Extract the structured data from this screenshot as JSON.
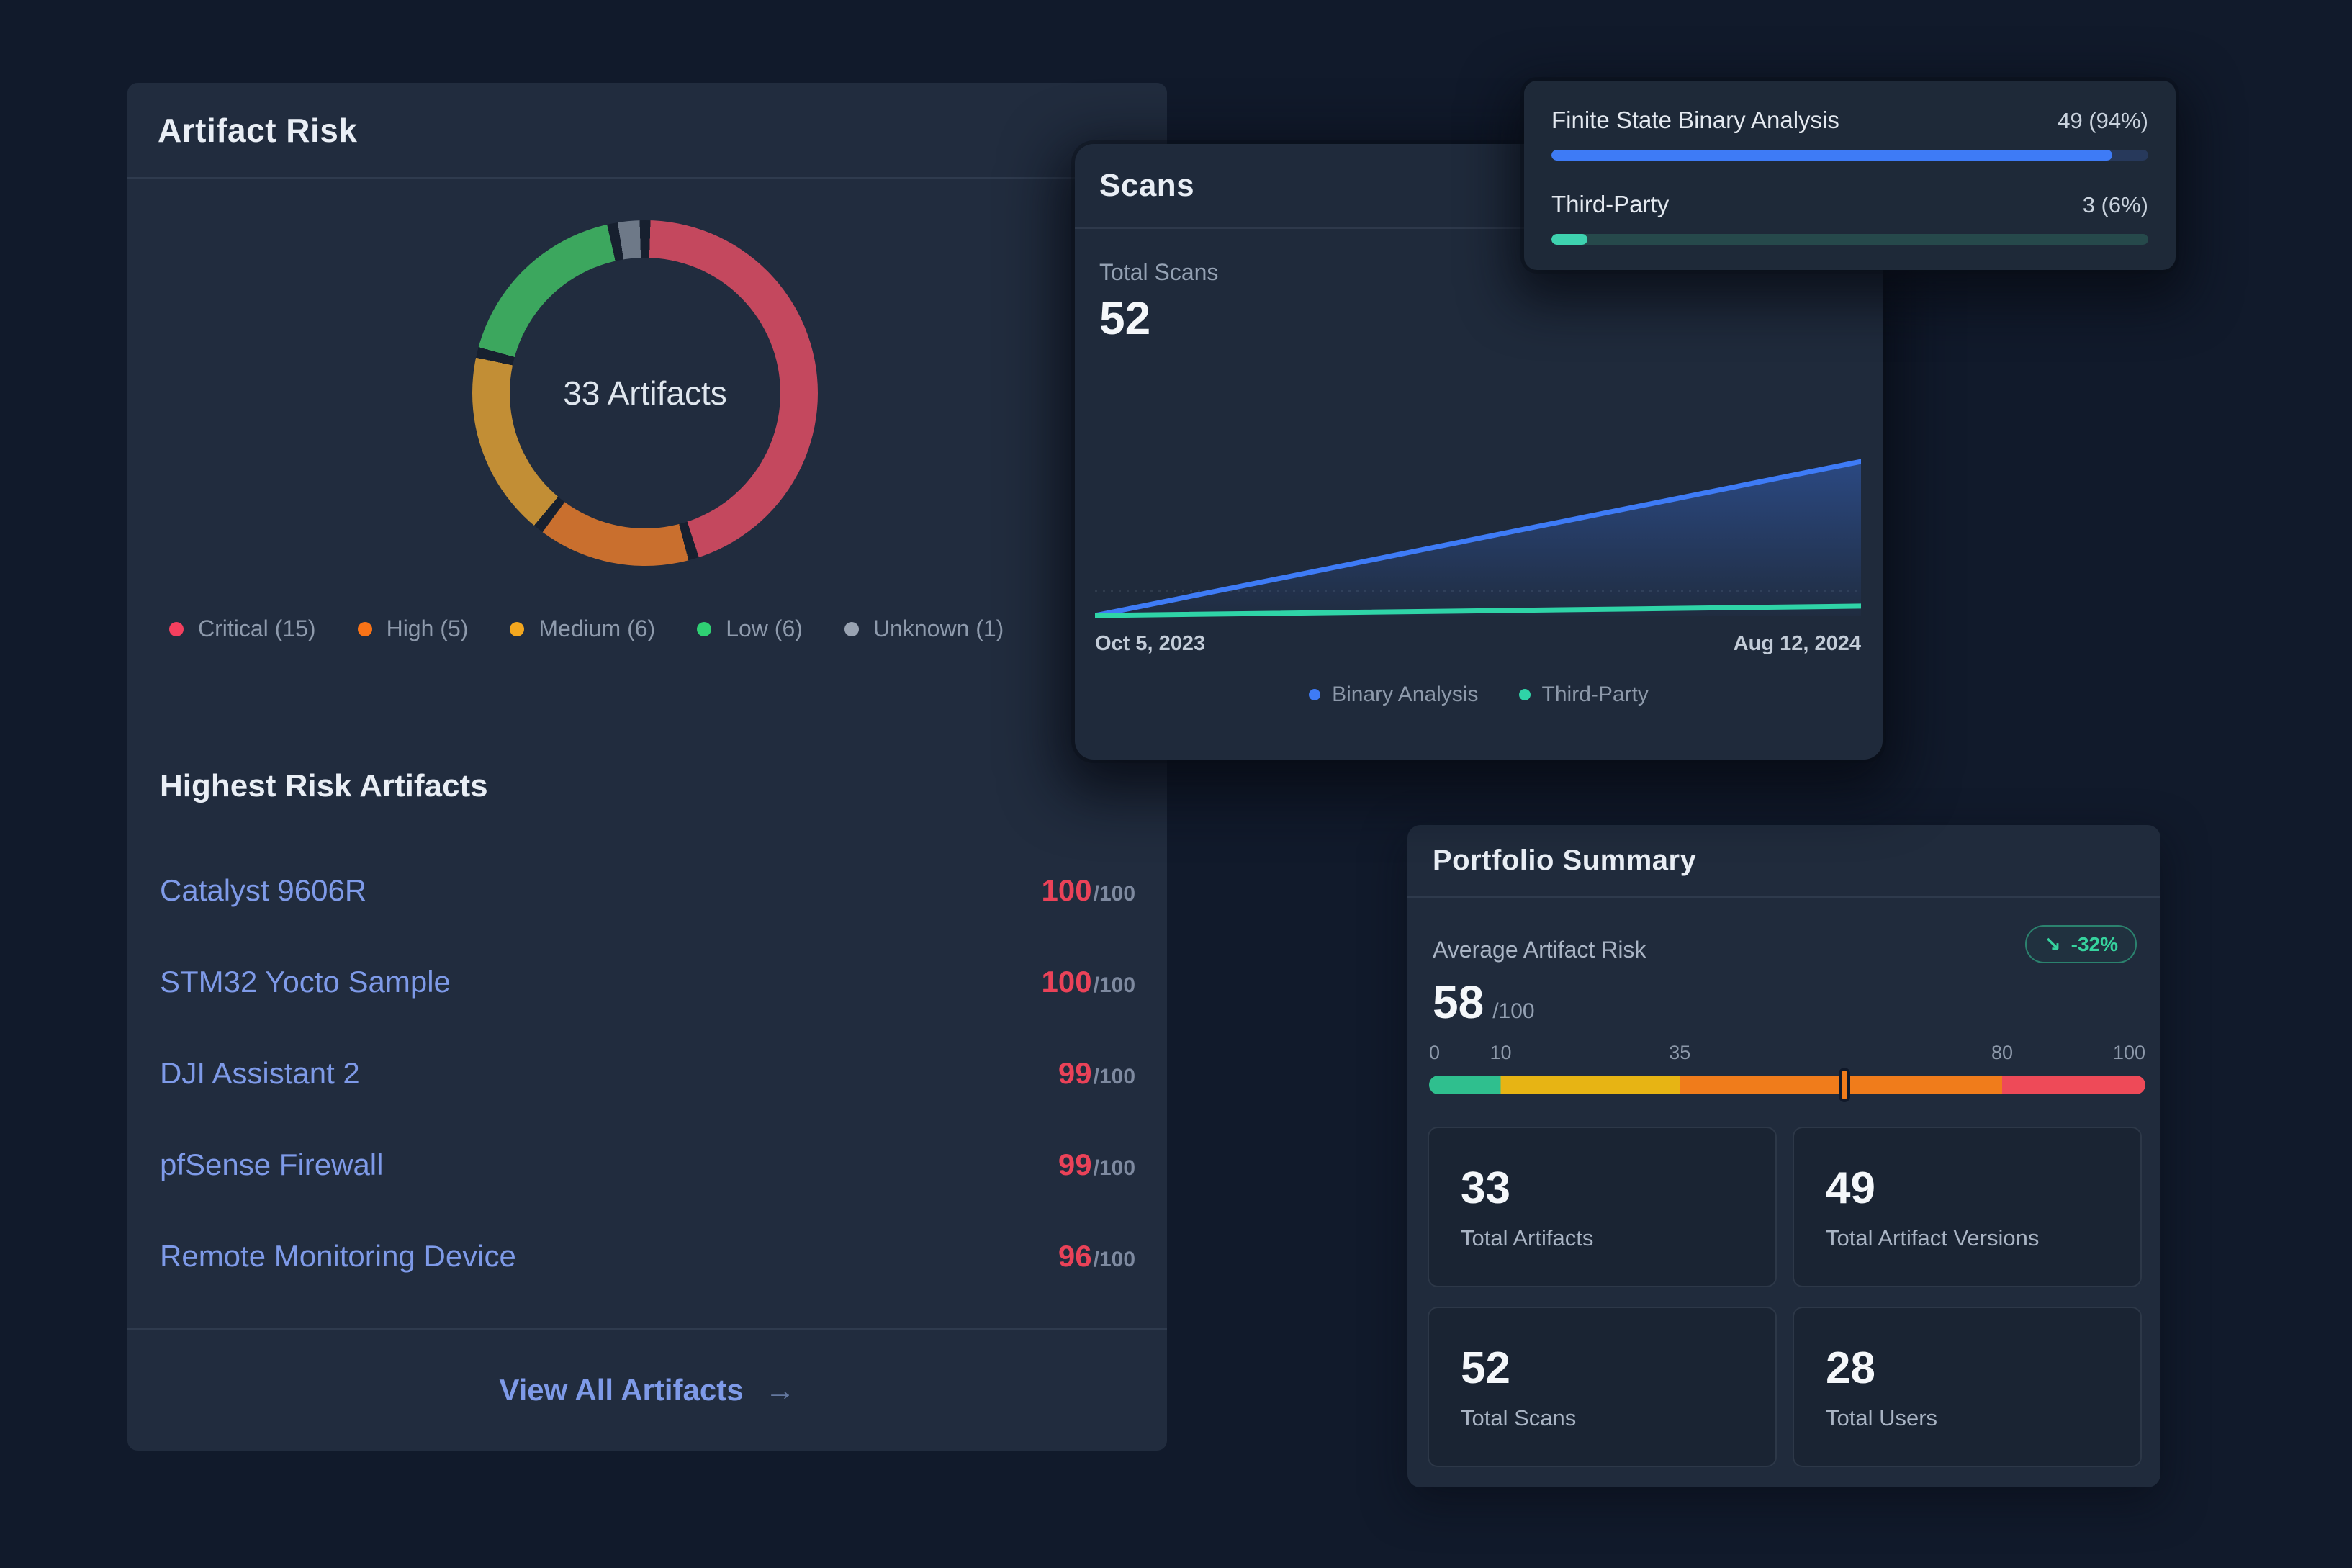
{
  "artifact_risk_card": {
    "title": "Artifact Risk",
    "donut_center_label": "33 Artifacts",
    "severities": [
      {
        "legend_text": "Critical (15)",
        "dot_color": "#f43f5e",
        "arc_color": "#c4485e"
      },
      {
        "legend_text": "High (5)",
        "dot_color": "#f97316",
        "arc_color": "#c96f2e"
      },
      {
        "legend_text": "Medium (6)",
        "dot_color": "#f3a71e",
        "arc_color": "#c28e35"
      },
      {
        "legend_text": "Low (6)",
        "dot_color": "#2fd073",
        "arc_color": "#3ca75e"
      },
      {
        "legend_text": "Unknown (1)",
        "dot_color": "#99a3b2",
        "arc_color": "#6e7988"
      }
    ],
    "highest_risk_heading": "Highest Risk Artifacts",
    "artifacts": [
      {
        "name": "Catalyst 9606R",
        "score": "100",
        "denominator": "/100"
      },
      {
        "name": "STM32 Yocto Sample",
        "score": "100",
        "denominator": "/100"
      },
      {
        "name": "DJI Assistant 2",
        "score": "99",
        "denominator": "/100"
      },
      {
        "name": "pfSense Firewall",
        "score": "99",
        "denominator": "/100"
      },
      {
        "name": "Remote Monitoring Device",
        "score": "96",
        "denominator": "/100"
      }
    ],
    "view_all_label": "View All Artifacts",
    "view_all_arrow": "→"
  },
  "scans_card": {
    "title": "Scans",
    "total_label": "Total Scans",
    "total_value": "52",
    "x_start": "Oct 5, 2023",
    "x_end": "Aug 12, 2024",
    "legend": [
      {
        "label": "Binary Analysis",
        "color": "#3e7bf6"
      },
      {
        "label": "Third-Party",
        "color": "#2fd4a7"
      }
    ]
  },
  "scan_types_card": {
    "rows": [
      {
        "label": "Finite State Binary Analysis",
        "value_text": "49 (94%)",
        "pct": 94,
        "fill": "#3e7bf6",
        "track": "#27395b"
      },
      {
        "label": "Third-Party",
        "value_text": "3 (6%)",
        "pct": 6,
        "fill": "#3ed2af",
        "track": "#26494b"
      }
    ]
  },
  "portfolio_card": {
    "title": "Portfolio Summary",
    "avg_label": "Average Artifact Risk",
    "avg_value": "58",
    "avg_denominator": "/100",
    "trend_badge": {
      "arrow": "↘",
      "text": "-32%",
      "color": "#36d39e"
    },
    "scale": {
      "ticks": [
        {
          "label": "0",
          "pos": 0
        },
        {
          "label": "10",
          "pos": 10
        },
        {
          "label": "35",
          "pos": 35
        },
        {
          "label": "80",
          "pos": 80
        },
        {
          "label": "100",
          "pos": 100
        }
      ],
      "stops": [
        {
          "color": "#2fbf8e",
          "to": 10
        },
        {
          "color": "#e7b414",
          "to": 35
        },
        {
          "color": "#f07c1b",
          "to": 80
        },
        {
          "color": "#ee4a58",
          "to": 100
        }
      ],
      "marker_value": 58,
      "marker_color": "#f07c1b"
    },
    "stats": [
      {
        "value": "33",
        "label": "Total Artifacts"
      },
      {
        "value": "49",
        "label": "Total Artifact Versions"
      },
      {
        "value": "52",
        "label": "Total Scans"
      },
      {
        "value": "28",
        "label": "Total Users"
      }
    ]
  },
  "chart_data": [
    {
      "type": "pie",
      "variant": "donut",
      "title": "Artifact Risk",
      "center_label": "33 Artifacts",
      "categories": [
        "Critical",
        "High",
        "Medium",
        "Low",
        "Unknown"
      ],
      "values": [
        15,
        5,
        6,
        6,
        1
      ],
      "colors": [
        "#c4485e",
        "#c96f2e",
        "#c28e35",
        "#3ca75e",
        "#6e7988"
      ],
      "legend_position": "bottom"
    },
    {
      "type": "area",
      "title": "Scans",
      "x": [
        "Oct 5, 2023",
        "Aug 12, 2024"
      ],
      "series": [
        {
          "name": "Binary Analysis",
          "color": "#3e7bf6",
          "values": [
            0,
            49
          ]
        },
        {
          "name": "Third-Party",
          "color": "#2fd4a7",
          "values": [
            0,
            3
          ]
        }
      ],
      "ylim": [
        0,
        52
      ],
      "grid": "single-dashed-horizontal",
      "legend_position": "bottom"
    },
    {
      "type": "bar",
      "title": "Scan Types",
      "categories": [
        "Finite State Binary Analysis",
        "Third-Party"
      ],
      "values": [
        49,
        3
      ],
      "percent": [
        94,
        6
      ]
    },
    {
      "type": "gauge",
      "title": "Average Artifact Risk",
      "value": 58,
      "max": 100,
      "ticks": [
        0,
        10,
        35,
        80,
        100
      ],
      "bands": [
        {
          "from": 0,
          "to": 10,
          "color": "#2fbf8e"
        },
        {
          "from": 10,
          "to": 35,
          "color": "#e7b414"
        },
        {
          "from": 35,
          "to": 80,
          "color": "#f07c1b"
        },
        {
          "from": 80,
          "to": 100,
          "color": "#ee4a58"
        }
      ],
      "trend": "-32%"
    }
  ]
}
